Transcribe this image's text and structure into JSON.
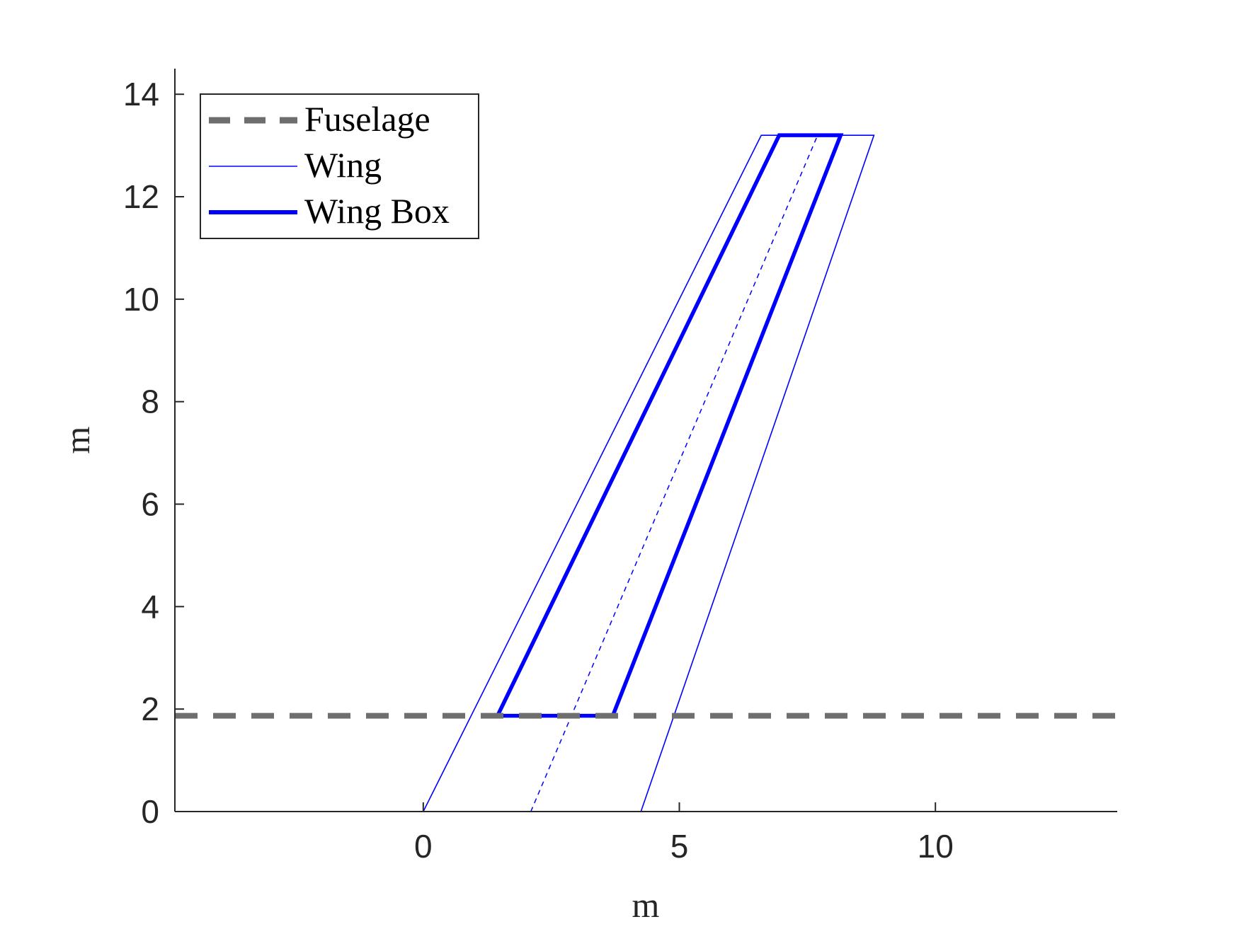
{
  "chart_data": {
    "type": "line",
    "xlabel": "m",
    "ylabel": "m",
    "xlim": [
      -4.85,
      13.55
    ],
    "ylim": [
      0,
      14.5
    ],
    "xticks": [
      0,
      5,
      10
    ],
    "yticks": [
      0,
      2,
      4,
      6,
      8,
      10,
      12,
      14
    ],
    "xtick_labels": [
      "0",
      "5",
      "10"
    ],
    "ytick_labels": [
      "0",
      "2",
      "4",
      "6",
      "8",
      "10",
      "12",
      "14"
    ],
    "grid": false,
    "legend_position": "top-left",
    "series": [
      {
        "name": "Fuselage",
        "style": "dashed",
        "color": "#6e6e6e",
        "x": [
          -4.85,
          13.55
        ],
        "y": [
          1.87,
          1.87
        ]
      },
      {
        "name": "Wing",
        "style": "thin",
        "color": "#0000ff",
        "x": [
          0,
          6.6,
          8.8,
          4.25,
          0
        ],
        "y": [
          0,
          13.2,
          13.2,
          0,
          0
        ]
      },
      {
        "name": "Wing Box",
        "style": "thick",
        "color": "#0000ff",
        "x": [
          1.45,
          6.95,
          8.15,
          3.7,
          1.45
        ],
        "y": [
          1.87,
          13.2,
          13.2,
          1.87,
          1.87
        ]
      }
    ],
    "extra_lines": [
      {
        "style": "dotted",
        "color": "#0000ff",
        "x": [
          2.1,
          7.7
        ],
        "y": [
          0,
          13.2
        ]
      }
    ]
  }
}
